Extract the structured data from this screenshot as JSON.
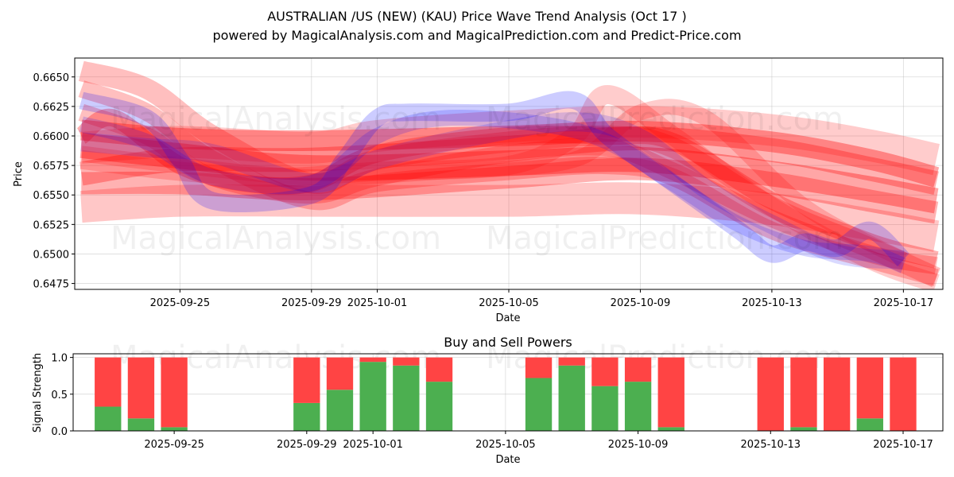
{
  "title_line1": "AUSTRALIAN /US (NEW) (KAU) Price Wave Trend Analysis (Oct 17 )",
  "title_line2": "powered by MagicalAnalysis.com and MagicalPrediction.com and Predict-Price.com",
  "watermarks": [
    "MagicalAnalysis.com",
    "MagicalPrediction.com"
  ],
  "colors": {
    "red": "#ff0000",
    "blue": "#0000ff",
    "buy": "#4caf50",
    "sell": "#ff4444",
    "grid": "#b0b0b0"
  },
  "chart_data": [
    {
      "type": "line",
      "title": "",
      "xlabel": "Date",
      "ylabel": "Price",
      "x_ticks": [
        "2025-09-25",
        "2025-09-29",
        "2025-10-01",
        "2025-10-05",
        "2025-10-09",
        "2025-10-13",
        "2025-10-17"
      ],
      "y_ticks": [
        "0.6475",
        "0.6500",
        "0.6525",
        "0.6550",
        "0.6575",
        "0.6600",
        "0.6625",
        "0.6650"
      ],
      "xlim": [
        "2025-09-21.8",
        "2025-10-18.2"
      ],
      "ylim": [
        0.647,
        0.6666
      ],
      "grid": true,
      "series": [
        {
          "color": "red",
          "alpha": 0.35,
          "width": 32,
          "x": [
            "2025-09-22",
            "2025-09-25",
            "2025-09-29",
            "2025-10-05",
            "2025-10-09",
            "2025-10-13",
            "2025-10-16",
            "2025-10-18"
          ],
          "y": [
            0.6592,
            0.6583,
            0.6573,
            0.6577,
            0.658,
            0.6568,
            0.6555,
            0.6545
          ]
        },
        {
          "color": "red",
          "alpha": 0.3,
          "width": 30,
          "x": [
            "2025-09-22",
            "2025-09-25",
            "2025-09-29",
            "2025-10-05",
            "2025-10-09",
            "2025-10-13",
            "2025-10-16",
            "2025-10-18"
          ],
          "y": [
            0.6568,
            0.658,
            0.658,
            0.659,
            0.6598,
            0.6588,
            0.6572,
            0.656
          ]
        },
        {
          "color": "red",
          "alpha": 0.35,
          "width": 26,
          "x": [
            "2025-09-22",
            "2025-09-25",
            "2025-09-29",
            "2025-10-05",
            "2025-10-09",
            "2025-10-13",
            "2025-10-16",
            "2025-10-18"
          ],
          "y": [
            0.6605,
            0.6598,
            0.6596,
            0.66,
            0.6604,
            0.6595,
            0.658,
            0.6565
          ]
        },
        {
          "color": "red",
          "alpha": 0.3,
          "width": 28,
          "x": [
            "2025-09-22",
            "2025-09-25",
            "2025-09-29",
            "2025-10-05",
            "2025-10-09",
            "2025-10-13",
            "2025-10-16",
            "2025-10-18"
          ],
          "y": [
            0.656,
            0.656,
            0.6555,
            0.6565,
            0.6572,
            0.656,
            0.6545,
            0.6535
          ]
        },
        {
          "color": "red",
          "alpha": 0.22,
          "width": 40,
          "x": [
            "2025-09-22",
            "2025-09-25",
            "2025-09-29",
            "2025-10-05",
            "2025-10-09",
            "2025-10-13",
            "2025-10-16",
            "2025-10-18"
          ],
          "y": [
            0.654,
            0.6545,
            0.6545,
            0.6545,
            0.6547,
            0.6538,
            0.6525,
            0.6515
          ]
        },
        {
          "color": "red",
          "alpha": 0.2,
          "width": 40,
          "x": [
            "2025-09-22",
            "2025-09-25",
            "2025-09-29",
            "2025-10-01",
            "2025-10-05",
            "2025-10-09",
            "2025-10-13",
            "2025-10-16",
            "2025-10-18"
          ],
          "y": [
            0.659,
            0.6595,
            0.659,
            0.66,
            0.6608,
            0.6612,
            0.6605,
            0.6592,
            0.658
          ]
        },
        {
          "color": "red",
          "alpha": 0.3,
          "width": 22,
          "x": [
            "2025-09-22",
            "2025-09-23",
            "2025-09-25",
            "2025-09-27",
            "2025-09-29",
            "2025-10-01",
            "2025-10-05",
            "2025-10-08",
            "2025-10-10",
            "2025-10-13",
            "2025-10-16",
            "2025-10-18"
          ],
          "y": [
            0.66,
            0.6615,
            0.6575,
            0.656,
            0.656,
            0.6585,
            0.66,
            0.66,
            0.6595,
            0.6545,
            0.651,
            0.6495
          ]
        },
        {
          "color": "red",
          "alpha": 0.25,
          "width": 26,
          "x": [
            "2025-09-22",
            "2025-09-24",
            "2025-09-26",
            "2025-09-29",
            "2025-10-01",
            "2025-10-05",
            "2025-10-08",
            "2025-10-10",
            "2025-10-13",
            "2025-10-16",
            "2025-10-18"
          ],
          "y": [
            0.6655,
            0.664,
            0.66,
            0.656,
            0.658,
            0.6595,
            0.66,
            0.659,
            0.654,
            0.6505,
            0.648
          ]
        },
        {
          "color": "red",
          "alpha": 0.25,
          "width": 22,
          "x": [
            "2025-09-22",
            "2025-09-24",
            "2025-09-26",
            "2025-09-29",
            "2025-10-01",
            "2025-10-05",
            "2025-10-08",
            "2025-10-10",
            "2025-10-13",
            "2025-10-16",
            "2025-10-18"
          ],
          "y": [
            0.664,
            0.662,
            0.658,
            0.6545,
            0.656,
            0.657,
            0.6575,
            0.6565,
            0.652,
            0.6495,
            0.648
          ]
        },
        {
          "color": "red",
          "alpha": 0.25,
          "width": 22,
          "x": [
            "2025-09-22",
            "2025-09-24",
            "2025-09-26",
            "2025-09-29",
            "2025-10-01",
            "2025-10-05",
            "2025-10-08",
            "2025-10-10",
            "2025-10-13",
            "2025-10-16",
            "2025-10-18"
          ],
          "y": [
            0.662,
            0.66,
            0.6565,
            0.655,
            0.6565,
            0.6585,
            0.659,
            0.657,
            0.653,
            0.65,
            0.649
          ]
        },
        {
          "color": "red",
          "alpha": 0.2,
          "width": 24,
          "x": [
            "2025-09-22",
            "2025-09-25",
            "2025-09-28",
            "2025-10-01",
            "2025-10-05",
            "2025-10-07",
            "2025-10-08",
            "2025-10-10",
            "2025-10-13",
            "2025-10-16",
            "2025-10-18"
          ],
          "y": [
            0.658,
            0.657,
            0.6565,
            0.657,
            0.6575,
            0.66,
            0.6635,
            0.66,
            0.654,
            0.6495,
            0.6475
          ]
        },
        {
          "color": "red",
          "alpha": 0.2,
          "width": 20,
          "x": [
            "2025-09-22",
            "2025-09-25",
            "2025-09-29",
            "2025-10-03",
            "2025-10-07",
            "2025-10-09",
            "2025-10-11",
            "2025-10-14",
            "2025-10-17"
          ],
          "y": [
            0.6585,
            0.6575,
            0.6565,
            0.657,
            0.658,
            0.662,
            0.6615,
            0.654,
            0.6495
          ]
        },
        {
          "color": "blue",
          "alpha": 0.2,
          "width": 22,
          "x": [
            "2025-09-22",
            "2025-09-24",
            "2025-09-25",
            "2025-09-26",
            "2025-09-29",
            "2025-09-30",
            "2025-10-01",
            "2025-10-02",
            "2025-10-05",
            "2025-10-07",
            "2025-10-08",
            "2025-10-10",
            "2025-10-12",
            "2025-10-13",
            "2025-10-14",
            "2025-10-15",
            "2025-10-16",
            "2025-10-17"
          ],
          "y": [
            0.663,
            0.6615,
            0.658,
            0.6545,
            0.655,
            0.658,
            0.6615,
            0.662,
            0.662,
            0.663,
            0.66,
            0.656,
            0.652,
            0.65,
            0.651,
            0.6505,
            0.652,
            0.6495
          ]
        },
        {
          "color": "blue",
          "alpha": 0.17,
          "width": 20,
          "x": [
            "2025-09-22",
            "2025-09-24",
            "2025-09-26",
            "2025-09-29",
            "2025-10-01",
            "2025-10-03",
            "2025-10-06",
            "2025-10-08",
            "2025-10-10",
            "2025-10-12",
            "2025-10-14",
            "2025-10-16",
            "2025-10-17"
          ],
          "y": [
            0.661,
            0.6595,
            0.6565,
            0.656,
            0.66,
            0.6615,
            0.661,
            0.6595,
            0.656,
            0.6525,
            0.6505,
            0.65,
            0.649
          ]
        },
        {
          "color": "blue",
          "alpha": 0.15,
          "width": 24,
          "x": [
            "2025-09-22",
            "2025-09-24",
            "2025-09-26",
            "2025-09-29",
            "2025-10-01",
            "2025-10-04",
            "2025-10-07",
            "2025-10-09",
            "2025-10-11",
            "2025-10-13",
            "2025-10-15",
            "2025-10-17"
          ],
          "y": [
            0.6595,
            0.659,
            0.6585,
            0.656,
            0.658,
            0.66,
            0.6612,
            0.6598,
            0.6555,
            0.6525,
            0.65,
            0.6495
          ]
        }
      ]
    },
    {
      "type": "bar",
      "title": "Buy and Sell Powers",
      "xlabel": "Date",
      "ylabel": "Signal Strength",
      "x_ticks": [
        "2025-09-25",
        "2025-09-29",
        "2025-10-01",
        "2025-10-05",
        "2025-10-09",
        "2025-10-13",
        "2025-10-17"
      ],
      "y_ticks": [
        "0.0",
        "0.5",
        "1.0"
      ],
      "ylim": [
        0,
        1.05
      ],
      "grid": true,
      "categories": [
        "2025-09-23",
        "2025-09-24",
        "2025-09-25",
        "2025-09-29",
        "2025-09-30",
        "2025-10-01",
        "2025-10-02",
        "2025-10-03",
        "2025-10-06",
        "2025-10-07",
        "2025-10-08",
        "2025-10-09",
        "2025-10-10",
        "2025-10-13",
        "2025-10-14",
        "2025-10-15",
        "2025-10-16",
        "2025-10-17"
      ],
      "series": [
        {
          "name": "Buy",
          "values": [
            0.33,
            0.17,
            0.05,
            0.38,
            0.56,
            0.94,
            0.89,
            0.67,
            0.72,
            0.89,
            0.61,
            0.67,
            0.05,
            0.0,
            0.05,
            0.0,
            0.17,
            0.0
          ]
        },
        {
          "name": "Sell",
          "values": [
            0.67,
            0.83,
            0.95,
            0.62,
            0.44,
            0.06,
            0.11,
            0.33,
            0.28,
            0.11,
            0.39,
            0.33,
            0.95,
            1.0,
            0.95,
            1.0,
            0.83,
            1.0
          ]
        }
      ]
    }
  ]
}
